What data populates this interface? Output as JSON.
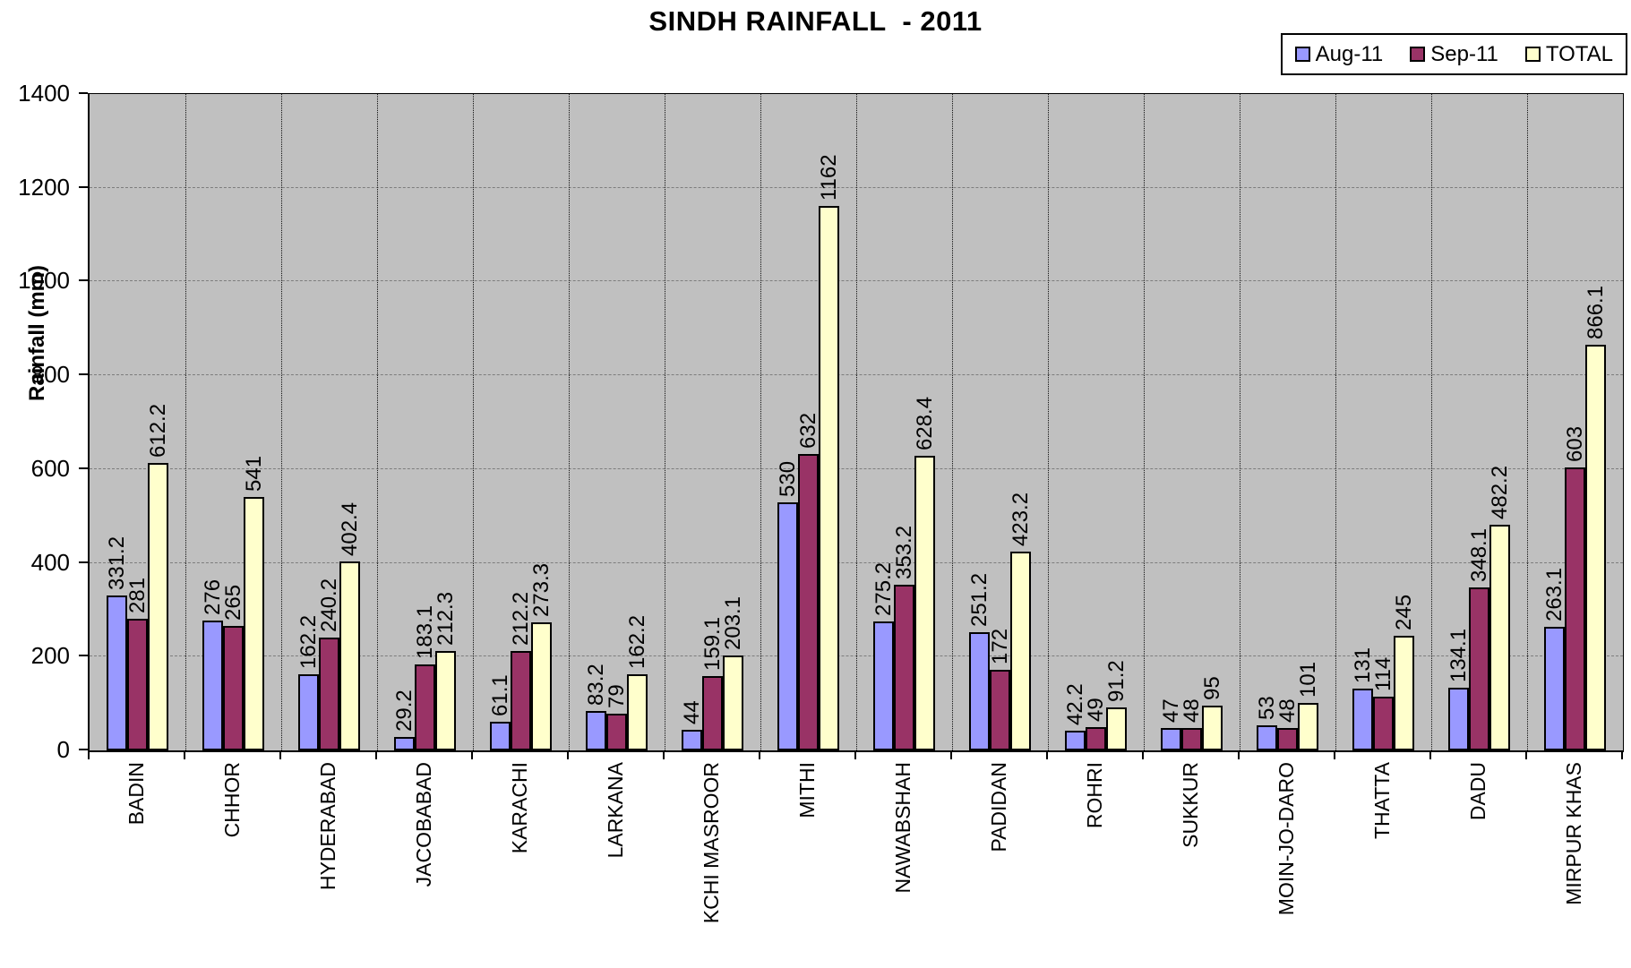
{
  "title": "SINDH RAINFALL  - 2011",
  "y_axis": {
    "label": "Rainfall (mm)",
    "ticks": [
      0,
      200,
      400,
      600,
      800,
      1000,
      1200,
      1400
    ],
    "max": 1400
  },
  "colors": {
    "plot_background": "#c0c0c0",
    "aug": "#9999ff",
    "sep": "#993366",
    "total": "#ffffcc"
  },
  "chart_data": {
    "type": "bar",
    "title": "SINDH RAINFALL  - 2011",
    "xlabel": "",
    "ylabel": "Rainfall (mm)",
    "ylim": [
      0,
      1400
    ],
    "grid": true,
    "legend_position": "top-right",
    "categories": [
      "BADIN",
      "CHHOR",
      "HYDERABAD",
      "JACOBABAD",
      "KARACHI",
      "LARKANA",
      "KCHI MASROOR",
      "MITHI",
      "NAWABSHAH",
      "PADIDAN",
      "ROHRI",
      "SUKKUR",
      "MOIN-JO-DARO",
      "THATTA",
      "DADU",
      "MIRPUR KHAS"
    ],
    "series": [
      {
        "name": "Aug-11",
        "color": "#9999ff",
        "values": [
          331.2,
          276,
          162.2,
          29.2,
          61.1,
          83.2,
          44,
          530,
          275.2,
          251.2,
          42.2,
          47,
          53,
          131,
          134.1,
          263.1
        ]
      },
      {
        "name": "Sep-11",
        "color": "#993366",
        "values": [
          281,
          265,
          240.2,
          183.1,
          212.2,
          79,
          159.1,
          632,
          353.2,
          172,
          49,
          48,
          48,
          114,
          348.1,
          603
        ]
      },
      {
        "name": "TOTAL",
        "color": "#ffffcc",
        "values": [
          612.2,
          541,
          402.4,
          212.3,
          273.3,
          162.2,
          203.1,
          1162,
          628.4,
          423.2,
          91.2,
          95,
          101,
          245,
          482.2,
          866.1
        ]
      }
    ]
  }
}
